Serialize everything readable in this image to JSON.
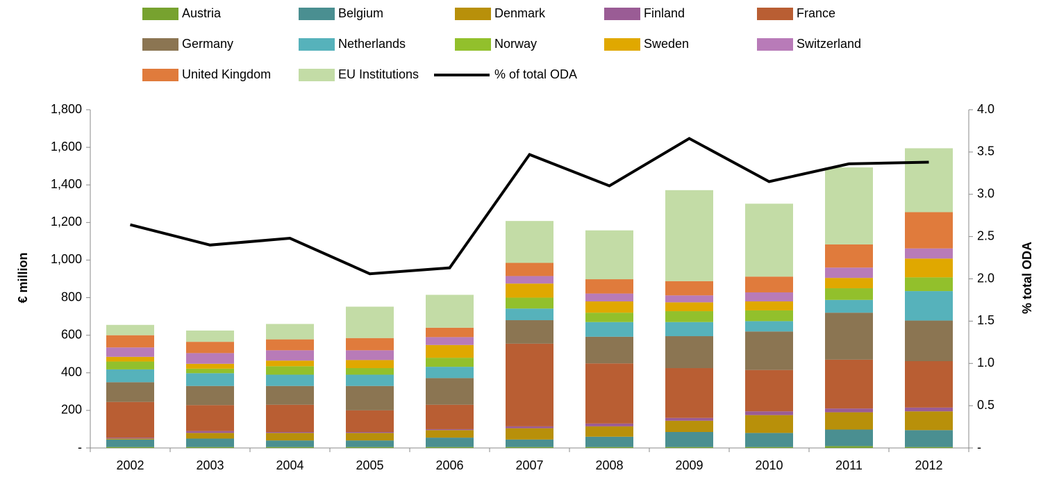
{
  "chart_data": {
    "type": "bar",
    "stacked": true,
    "ylabel": "€ million",
    "y2label": "% total ODA",
    "categories": [
      "2002",
      "2003",
      "2004",
      "2005",
      "2006",
      "2007",
      "2008",
      "2009",
      "2010",
      "2011",
      "2012"
    ],
    "ylim": [
      0,
      1800
    ],
    "yticks": [
      {
        "value": 0,
        "label": "-"
      },
      200,
      400,
      600,
      800,
      {
        "value": 1000,
        "label": "1,000"
      },
      {
        "value": 1200,
        "label": "1,200"
      },
      {
        "value": 1400,
        "label": "1,400"
      },
      {
        "value": 1600,
        "label": "1,600"
      },
      {
        "value": 1800,
        "label": "1,800"
      }
    ],
    "y2lim": [
      0,
      4
    ],
    "y2ticks": [
      {
        "value": 0,
        "label": "-"
      },
      0.5,
      {
        "value": 1,
        "label": "1.0"
      },
      1.5,
      {
        "value": 2,
        "label": "2.0"
      },
      2.5,
      {
        "value": 3,
        "label": "3.0"
      },
      3.5,
      {
        "value": 4,
        "label": "4.0"
      }
    ],
    "grid": false,
    "legend": "top",
    "series": [
      {
        "name": "Austria",
        "color": "#77a22f",
        "values": [
          5,
          5,
          5,
          5,
          5,
          5,
          5,
          5,
          5,
          10,
          5
        ]
      },
      {
        "name": "Belgium",
        "color": "#4a8f91",
        "values": [
          40,
          45,
          35,
          35,
          50,
          40,
          55,
          80,
          75,
          88,
          90
        ]
      },
      {
        "name": "Denmark",
        "color": "#b8900a",
        "values": [
          5,
          30,
          40,
          40,
          40,
          60,
          55,
          60,
          95,
          92,
          100
        ]
      },
      {
        "name": "Finland",
        "color": "#9a5c95",
        "values": [
          5,
          10,
          5,
          5,
          5,
          10,
          15,
          15,
          20,
          20,
          20
        ]
      },
      {
        "name": "France",
        "color": "#b95e33",
        "values": [
          190,
          138,
          145,
          115,
          130,
          440,
          320,
          265,
          220,
          260,
          247
        ]
      },
      {
        "name": "Germany",
        "color": "#8b7552",
        "values": [
          105,
          102,
          100,
          130,
          142,
          125,
          142,
          170,
          205,
          250,
          216
        ]
      },
      {
        "name": "Netherlands",
        "color": "#56b2bb",
        "values": [
          68,
          68,
          60,
          60,
          60,
          62,
          78,
          75,
          55,
          68,
          157
        ]
      },
      {
        "name": "Norway",
        "color": "#92c02c",
        "values": [
          42,
          24,
          45,
          35,
          48,
          58,
          50,
          58,
          57,
          62,
          73
        ]
      },
      {
        "name": "Sweden",
        "color": "#e0a800",
        "values": [
          25,
          26,
          30,
          43,
          68,
          75,
          60,
          47,
          48,
          55,
          100
        ]
      },
      {
        "name": "Switzerland",
        "color": "#b87bb8",
        "values": [
          50,
          57,
          55,
          52,
          42,
          40,
          42,
          37,
          48,
          55,
          54
        ]
      },
      {
        "name": "United Kingdom",
        "color": "#e07b3c",
        "values": [
          65,
          60,
          58,
          65,
          50,
          70,
          76,
          76,
          84,
          123,
          193
        ]
      },
      {
        "name": "EU Institutions",
        "color": "#c3dca6",
        "values": [
          55,
          60,
          82,
          167,
          175,
          223,
          260,
          484,
          388,
          410,
          340
        ]
      },
      {
        "name": "% of total ODA",
        "color": "#000000",
        "type": "line",
        "axis": "y2",
        "values": [
          2.64,
          2.4,
          2.48,
          2.06,
          2.13,
          3.47,
          3.1,
          3.66,
          3.15,
          3.36,
          3.38
        ]
      }
    ]
  }
}
